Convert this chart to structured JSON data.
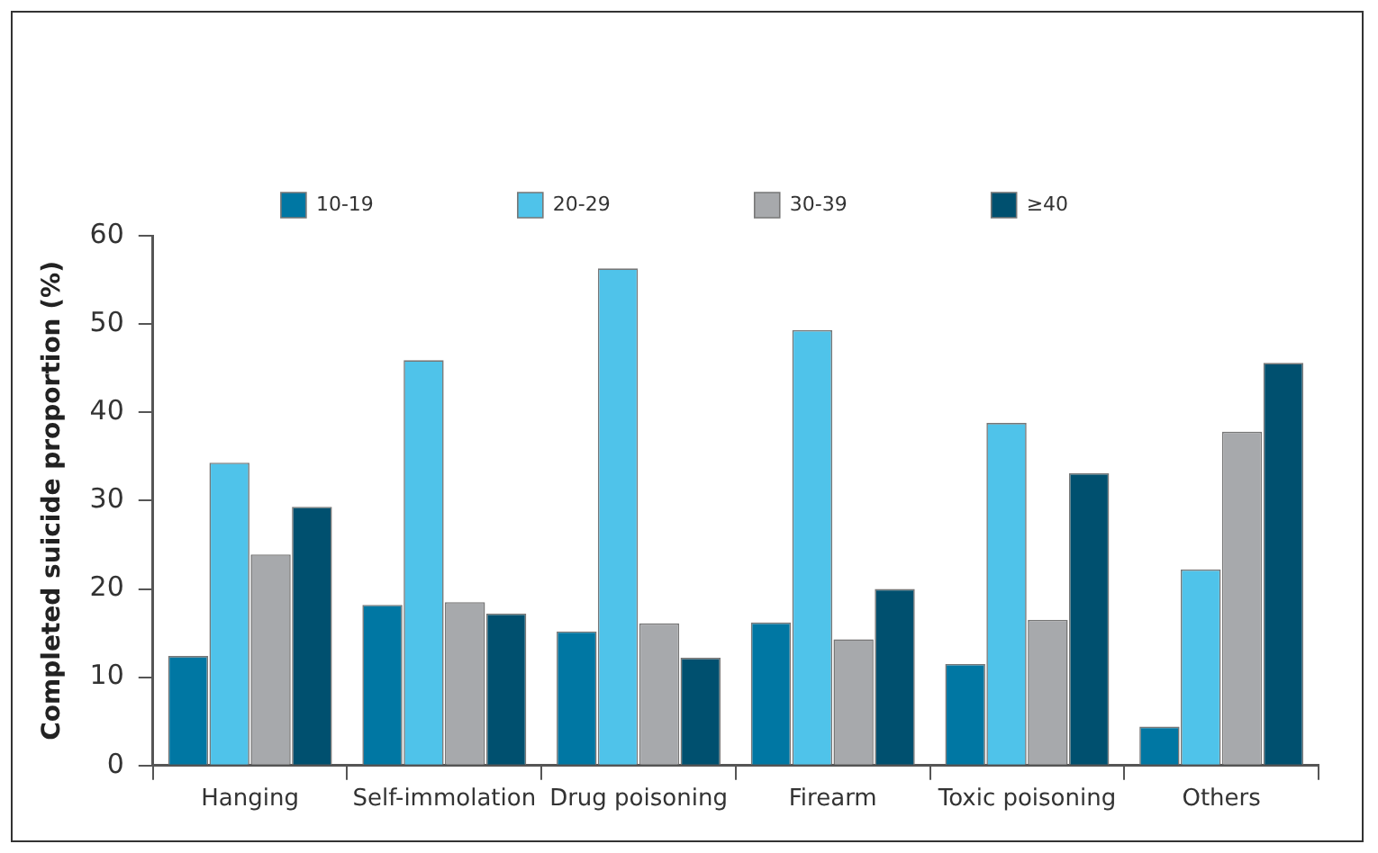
{
  "chart_data": {
    "type": "bar",
    "ylabel": "Completed suicide proportion (%)",
    "categories": [
      "Hanging",
      "Self-immolation",
      "Drug poisoning",
      "Firearm",
      "Toxic poisoning",
      "Others"
    ],
    "series": [
      {
        "name": "10-19",
        "color": "#0077a3",
        "values": [
          12.4,
          18.2,
          15.2,
          16.2,
          11.5,
          4.4
        ]
      },
      {
        "name": "20-29",
        "color": "#4fc3ea",
        "values": [
          34.3,
          45.9,
          56.3,
          49.3,
          38.8,
          22.2
        ]
      },
      {
        "name": "30-39",
        "color": "#a7a9ac",
        "values": [
          23.9,
          18.5,
          16.1,
          14.3,
          16.5,
          37.8
        ]
      },
      {
        "name": "≥40",
        "color": "#00506f",
        "values": [
          29.3,
          17.2,
          12.2,
          20.0,
          33.1,
          45.6
        ]
      }
    ],
    "ylim": [
      0,
      60
    ],
    "yticks": [
      0,
      10,
      20,
      30,
      40,
      50,
      60
    ],
    "grid": false,
    "legend": "top"
  }
}
